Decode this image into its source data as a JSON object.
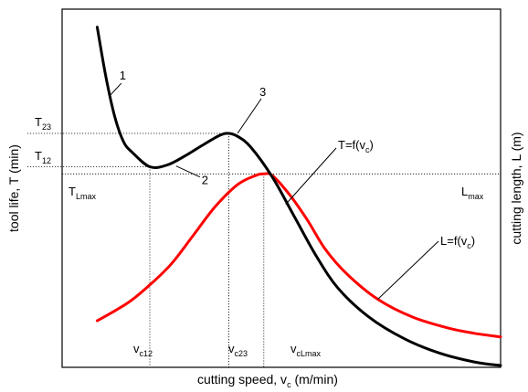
{
  "chart_data": {
    "type": "line",
    "xlabel": {
      "main": "cutting speed, v",
      "sub": "c",
      "tail": " (m/min)"
    },
    "ylabel_left": "tool life, T (min)",
    "ylabel_right": "cutting length, L (m)",
    "xlim": [
      0,
      100
    ],
    "ylim": [
      0,
      100
    ],
    "series": [
      {
        "key": "T",
        "label_main": "T=f(v",
        "label_sub": "c",
        "label_tail": ")",
        "color": "#000000",
        "points": [
          [
            8,
            95
          ],
          [
            10,
            81
          ],
          [
            12,
            70
          ],
          [
            14,
            63
          ],
          [
            16,
            60
          ],
          [
            20,
            56
          ],
          [
            24,
            56.5
          ],
          [
            28,
            59
          ],
          [
            32,
            62
          ],
          [
            36,
            64.8
          ],
          [
            38,
            65.3
          ],
          [
            40,
            64.5
          ],
          [
            43,
            61.5
          ],
          [
            48,
            53
          ],
          [
            53,
            42
          ],
          [
            58,
            31
          ],
          [
            63,
            22
          ],
          [
            70,
            14
          ],
          [
            78,
            8
          ],
          [
            86,
            4
          ],
          [
            94,
            1.5
          ],
          [
            100,
            0.5
          ]
        ]
      },
      {
        "key": "L",
        "label_main": "L=f(v",
        "label_sub": "c",
        "label_tail": ")",
        "color": "#ff0000",
        "points": [
          [
            8,
            13
          ],
          [
            15,
            18
          ],
          [
            20,
            23
          ],
          [
            25,
            29
          ],
          [
            30,
            37
          ],
          [
            35,
            45
          ],
          [
            40,
            51
          ],
          [
            44,
            53.5
          ],
          [
            46,
            54
          ],
          [
            48,
            53.5
          ],
          [
            52,
            48
          ],
          [
            56,
            41
          ],
          [
            60,
            33
          ],
          [
            65,
            26
          ],
          [
            72,
            19
          ],
          [
            80,
            14
          ],
          [
            88,
            11
          ],
          [
            94,
            9.5
          ],
          [
            100,
            8.5
          ]
        ]
      }
    ],
    "points": [
      {
        "key": "v12",
        "x": 20,
        "y": 56,
        "ylevel": "T12",
        "xlevel": "vc12",
        "marker": "2"
      },
      {
        "key": "v23",
        "x": 38,
        "y": 65.3,
        "ylevel": "T23",
        "xlevel": "vc23",
        "marker": "3"
      },
      {
        "key": "vLmax",
        "x": 46,
        "y": 54,
        "ylevel": "Lmax",
        "xlevel": "vcLmax"
      }
    ],
    "region_markers": [
      {
        "text": "1",
        "at": [
          11,
          76
        ]
      }
    ],
    "y_levels": {
      "T23": {
        "main": "T",
        "sub": "23",
        "value": 65.3
      },
      "T12": {
        "main": "T",
        "sub": "12",
        "value": 56
      },
      "TLmax": {
        "main": "T",
        "sub": "Lmax",
        "value": 54
      },
      "Lmax": {
        "main": "L",
        "sub": "max",
        "value": 54
      }
    },
    "x_levels": {
      "vc12": {
        "main": "v",
        "sub": "c12",
        "value": 20
      },
      "vc23": {
        "main": "v",
        "sub": "c23",
        "value": 38
      },
      "vcLmax": {
        "main": "v",
        "sub": "cLmax",
        "value": 46
      }
    },
    "grid": false,
    "ticks": false
  }
}
